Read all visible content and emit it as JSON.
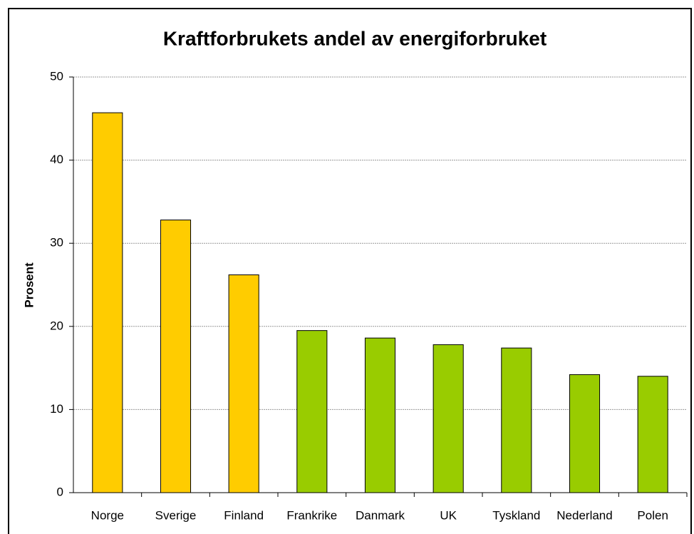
{
  "chart_data": {
    "type": "bar",
    "title": "Kraftforbrukets andel av energiforbruket",
    "y_label": "Prosent",
    "categories": [
      "Norge",
      "Sverige",
      "Finland",
      "Frankrike",
      "Danmark",
      "UK",
      "Tyskland",
      "Nederland",
      "Polen"
    ],
    "values": [
      45.7,
      32.8,
      26.2,
      19.5,
      18.6,
      17.8,
      17.4,
      14.2,
      14.0
    ],
    "colors": [
      "#ffcc00",
      "#ffcc00",
      "#ffcc00",
      "#99cc00",
      "#99cc00",
      "#99cc00",
      "#99cc00",
      "#99cc00",
      "#99cc00"
    ],
    "ylim": [
      0,
      50
    ],
    "yticks": [
      0,
      10,
      20,
      30,
      40,
      50
    ],
    "grid": true
  }
}
